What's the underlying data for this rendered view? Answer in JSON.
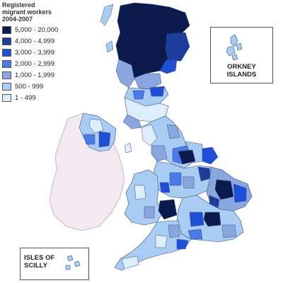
{
  "legend": {
    "title": [
      "Registered",
      "migrant workers",
      "2004-2007"
    ],
    "classes": [
      {
        "label": "5,000 - 20,000",
        "color": "#0b1a4d"
      },
      {
        "label": "4,000 - 4,999",
        "color": "#1b3e9a"
      },
      {
        "label": "3,000 - 3,999",
        "color": "#1f4fd8"
      },
      {
        "label": "2,000 - 2,999",
        "color": "#4a7be8"
      },
      {
        "label": "1,000 - 1,999",
        "color": "#8aa6df"
      },
      {
        "label": "500 - 999",
        "color": "#a9cdf2"
      },
      {
        "label": "1 - 499",
        "color": "#dceefb"
      }
    ]
  },
  "insets": {
    "orkney": {
      "label_lines": [
        "ORKNEY",
        "ISLANDS"
      ]
    },
    "scilly": {
      "label_lines": [
        "ISLES OF",
        "SCILLY"
      ]
    }
  },
  "colors": {
    "ireland": "#f4e9f0",
    "border": "#3a4a8a"
  }
}
